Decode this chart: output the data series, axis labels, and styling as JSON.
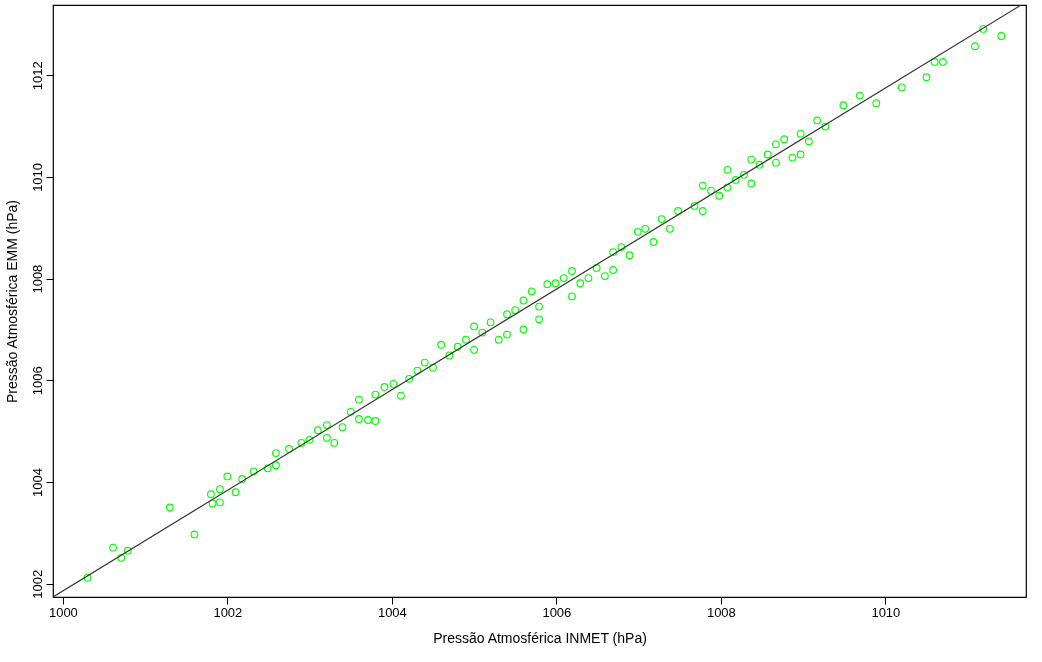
{
  "chart_data": {
    "type": "scatter",
    "xlabel": "Pressão Atmosférica INMET (hPa)",
    "ylabel": "Pressão Atmosférica EMM (hPa)",
    "xlim": [
      999.88,
      1011.71
    ],
    "ylim": [
      1001.74,
      1013.38
    ],
    "xticks": [
      1000,
      1002,
      1004,
      1006,
      1008,
      1010
    ],
    "yticks": [
      1002,
      1004,
      1006,
      1008,
      1010,
      1012
    ],
    "grid": false,
    "series": [
      {
        "color": "#00ff00",
        "marker": "circle",
        "x": [
          1000.3,
          1000.61,
          1000.71,
          1000.79,
          1001.3,
          1001.6,
          1001.8,
          1001.82,
          1001.91,
          1001.91,
          1002.0,
          1002.1,
          1002.18,
          1002.32,
          1002.49,
          1002.59,
          1002.59,
          1002.75,
          1002.9,
          1003.0,
          1003.1,
          1003.21,
          1003.21,
          1003.3,
          1003.4,
          1003.5,
          1003.6,
          1003.6,
          1003.71,
          1003.8,
          1003.8,
          1003.91,
          1004.02,
          1004.11,
          1004.21,
          1004.31,
          1004.4,
          1004.5,
          1004.6,
          1004.7,
          1004.8,
          1004.9,
          1005.0,
          1005.0,
          1005.1,
          1005.2,
          1005.3,
          1005.4,
          1005.4,
          1005.5,
          1005.6,
          1005.6,
          1005.7,
          1005.79,
          1005.79,
          1005.89,
          1005.99,
          1006.09,
          1006.19,
          1006.19,
          1006.29,
          1006.39,
          1006.49,
          1006.59,
          1006.69,
          1006.69,
          1006.79,
          1006.89,
          1006.99,
          1007.08,
          1007.18,
          1007.28,
          1007.38,
          1007.48,
          1007.68,
          1007.78,
          1007.78,
          1007.88,
          1007.98,
          1008.08,
          1008.08,
          1008.18,
          1008.28,
          1008.37,
          1008.37,
          1008.47,
          1008.57,
          1008.67,
          1008.67,
          1008.77,
          1008.87,
          1008.97,
          1008.97,
          1009.07,
          1009.17,
          1009.27,
          1009.49,
          1009.69,
          1009.89,
          1010.2,
          1010.5,
          1010.6,
          1010.7,
          1011.09,
          1011.19,
          1011.41
        ],
        "values": [
          1002.12,
          1002.71,
          1002.51,
          1002.65,
          1003.5,
          1002.97,
          1003.76,
          1003.58,
          1003.6,
          1003.86,
          1004.11,
          1003.8,
          1004.06,
          1004.21,
          1004.27,
          1004.57,
          1004.33,
          1004.65,
          1004.77,
          1004.83,
          1005.02,
          1005.12,
          1004.87,
          1004.77,
          1005.08,
          1005.38,
          1005.62,
          1005.24,
          1005.22,
          1005.2,
          1005.72,
          1005.87,
          1005.93,
          1005.7,
          1006.03,
          1006.19,
          1006.35,
          1006.25,
          1006.7,
          1006.49,
          1006.66,
          1006.8,
          1006.6,
          1007.06,
          1006.94,
          1007.14,
          1006.8,
          1007.3,
          1006.9,
          1007.38,
          1007.57,
          1007.0,
          1007.75,
          1007.45,
          1007.2,
          1007.89,
          1007.91,
          1008.01,
          1008.15,
          1007.65,
          1007.91,
          1008.01,
          1008.21,
          1008.05,
          1008.52,
          1008.17,
          1008.62,
          1008.46,
          1008.92,
          1008.98,
          1008.72,
          1009.17,
          1008.98,
          1009.33,
          1009.43,
          1009.83,
          1009.33,
          1009.73,
          1009.63,
          1010.14,
          1009.79,
          1009.94,
          1010.04,
          1009.87,
          1010.34,
          1010.24,
          1010.44,
          1010.64,
          1010.28,
          1010.74,
          1010.38,
          1010.85,
          1010.44,
          1010.7,
          1011.11,
          1010.99,
          1011.41,
          1011.6,
          1011.45,
          1011.76,
          1011.96,
          1012.26,
          1012.26,
          1012.57,
          1012.91,
          1012.77
        ]
      },
      {
        "type": "line",
        "color": "#333333",
        "marker": "none",
        "x": [
          999.88,
          1011.65
        ],
        "values": [
          1001.74,
          1013.38
        ]
      }
    ]
  }
}
